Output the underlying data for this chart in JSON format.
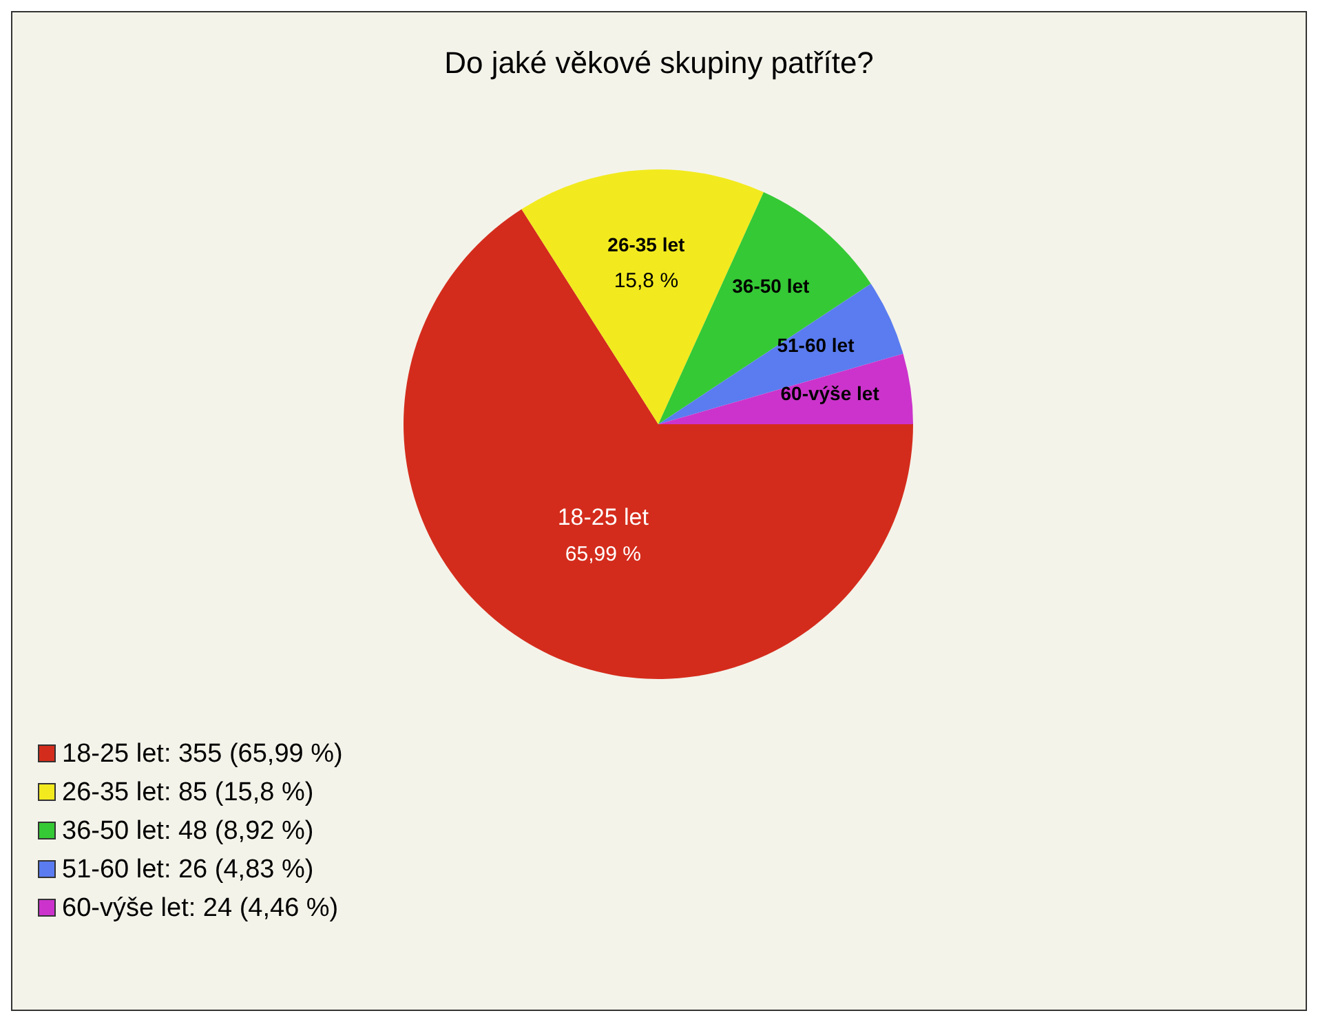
{
  "chart_data": {
    "type": "pie",
    "title": "Do jaké věkové skupiny patříte?",
    "categories": [
      "18-25 let",
      "26-35 let",
      "36-50 let",
      "51-60 let",
      "60-výše let"
    ],
    "values": [
      355,
      85,
      48,
      26,
      24
    ],
    "value_labels": [
      ": 355 (65,99 %)",
      ": 85 (15,8 %)",
      ": 48 (8,92 %)",
      ": 26 (4,83 %)",
      ": 24 (4,46 %)"
    ],
    "colors": [
      "#d42c1c",
      "#f2ea1e",
      "#35c935",
      "#5a7cf0",
      "#cc33cc"
    ],
    "annotations": [
      {
        "text": "65,99 %",
        "x": "18-25 let"
      },
      {
        "text": "15,8 %",
        "x": "26-35 let"
      }
    ],
    "legend": "bottom left"
  }
}
